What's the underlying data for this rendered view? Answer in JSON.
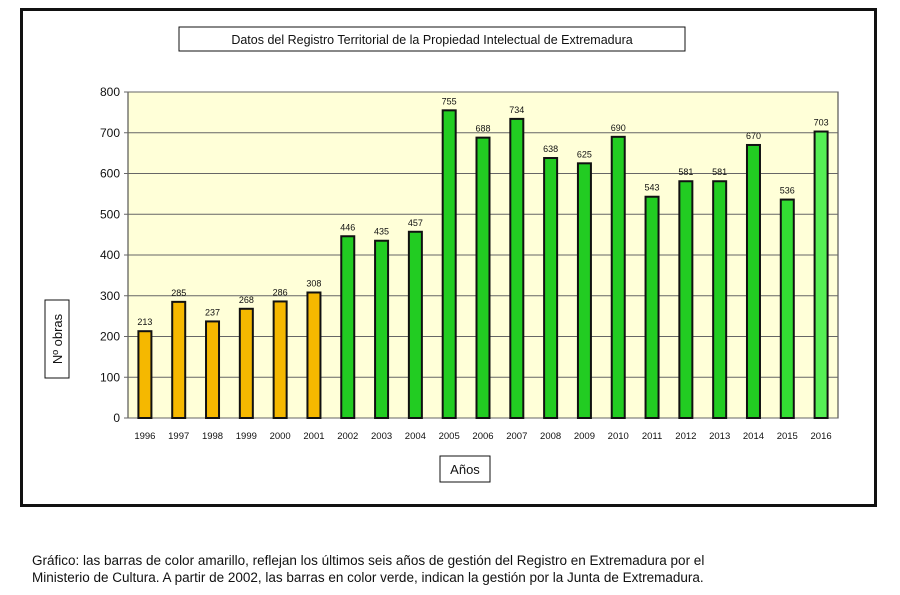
{
  "chart_data": {
    "type": "bar",
    "title": "Datos del Registro Territorial de la Propiedad Intelectual de Extremadura",
    "xlabel": "Años",
    "ylabel": "Nº obras",
    "categories": [
      "1996",
      "1997",
      "1998",
      "1999",
      "2000",
      "2001",
      "2002",
      "2003",
      "2004",
      "2005",
      "2006",
      "2007",
      "2008",
      "2009",
      "2010",
      "2011",
      "2012",
      "2013",
      "2014",
      "2015",
      "2016"
    ],
    "values": [
      213,
      285,
      237,
      268,
      286,
      308,
      446,
      435,
      457,
      755,
      688,
      734,
      638,
      625,
      690,
      543,
      581,
      581,
      670,
      536,
      703
    ],
    "bar_colors": [
      "#f5b800",
      "#f5b800",
      "#f5b800",
      "#f5b800",
      "#f5b800",
      "#f5b800",
      "#22cc22",
      "#22cc22",
      "#22cc22",
      "#22cc22",
      "#22cc22",
      "#22cc22",
      "#22cc22",
      "#22cc22",
      "#22cc22",
      "#22cc22",
      "#22cc22",
      "#22cc22",
      "#22cc22",
      "#33dd33",
      "#55ee55"
    ],
    "ylim": [
      0,
      800
    ],
    "yticks": [
      0,
      100,
      200,
      300,
      400,
      500,
      600,
      700,
      800
    ],
    "grid": true,
    "plot_background": "#ffffd8",
    "gridline_color": "#666666",
    "bar_outline_color": "#111111"
  },
  "caption": {
    "line1": "Gráfico: las barras de color amarillo, reflejan los últimos seis años de gestión del Registro en Extremadura por el",
    "line2": "Ministerio de Cultura. A partir de 2002, las barras en color verde, indican la gestión por la Junta de Extremadura."
  }
}
